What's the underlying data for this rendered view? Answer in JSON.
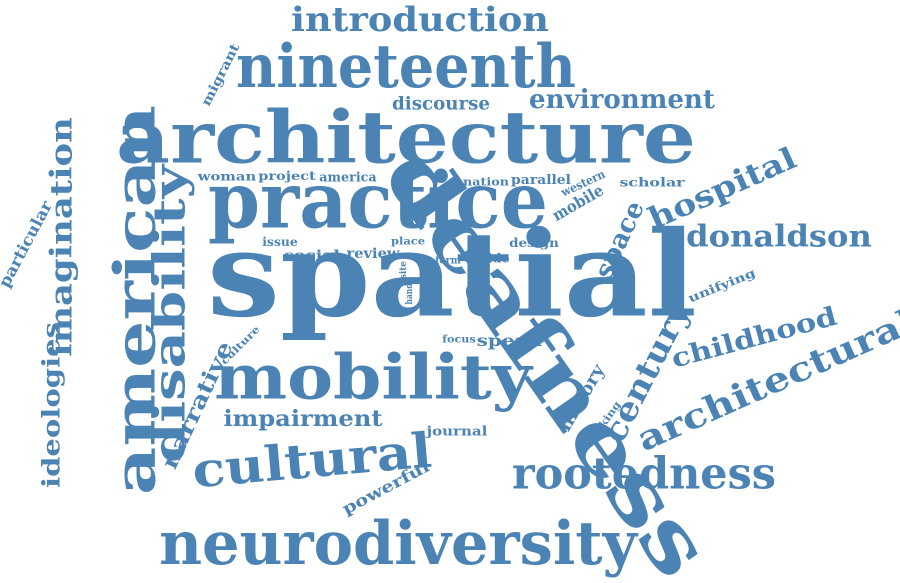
{
  "color": "#4a83b4",
  "words": [
    {
      "text": "spatial"
    },
    {
      "text": "architecture"
    },
    {
      "text": "practice"
    },
    {
      "text": "deafness"
    },
    {
      "text": "mobility"
    },
    {
      "text": "neurodiversity"
    },
    {
      "text": "nineteenth"
    },
    {
      "text": "american"
    },
    {
      "text": "disability"
    },
    {
      "text": "cultural"
    },
    {
      "text": "rootedness"
    },
    {
      "text": "introduction"
    },
    {
      "text": "architectural"
    },
    {
      "text": "imagination"
    },
    {
      "text": "donaldson"
    },
    {
      "text": "century"
    },
    {
      "text": "hospital"
    },
    {
      "text": "childhood"
    },
    {
      "text": "environment"
    },
    {
      "text": "space"
    },
    {
      "text": "ideologies"
    },
    {
      "text": "impairment"
    },
    {
      "text": "narrative"
    },
    {
      "text": "discourse"
    },
    {
      "text": "particular"
    },
    {
      "text": "history"
    },
    {
      "text": "powerful"
    },
    {
      "text": "mobile"
    },
    {
      "text": "migrant"
    },
    {
      "text": "speak"
    },
    {
      "text": "review"
    },
    {
      "text": "social"
    },
    {
      "text": "journal"
    },
    {
      "text": "woman"
    },
    {
      "text": "project"
    },
    {
      "text": "america"
    },
    {
      "text": "nation"
    },
    {
      "text": "parallel"
    },
    {
      "text": "western"
    },
    {
      "text": "scholar"
    },
    {
      "text": "issue"
    },
    {
      "text": "place"
    },
    {
      "text": "design"
    },
    {
      "text": "unifying"
    },
    {
      "text": "making"
    },
    {
      "text": "culture"
    },
    {
      "text": "focus"
    },
    {
      "text": "hide"
    },
    {
      "text": "form"
    },
    {
      "text": "site"
    },
    {
      "text": "hand"
    }
  ]
}
